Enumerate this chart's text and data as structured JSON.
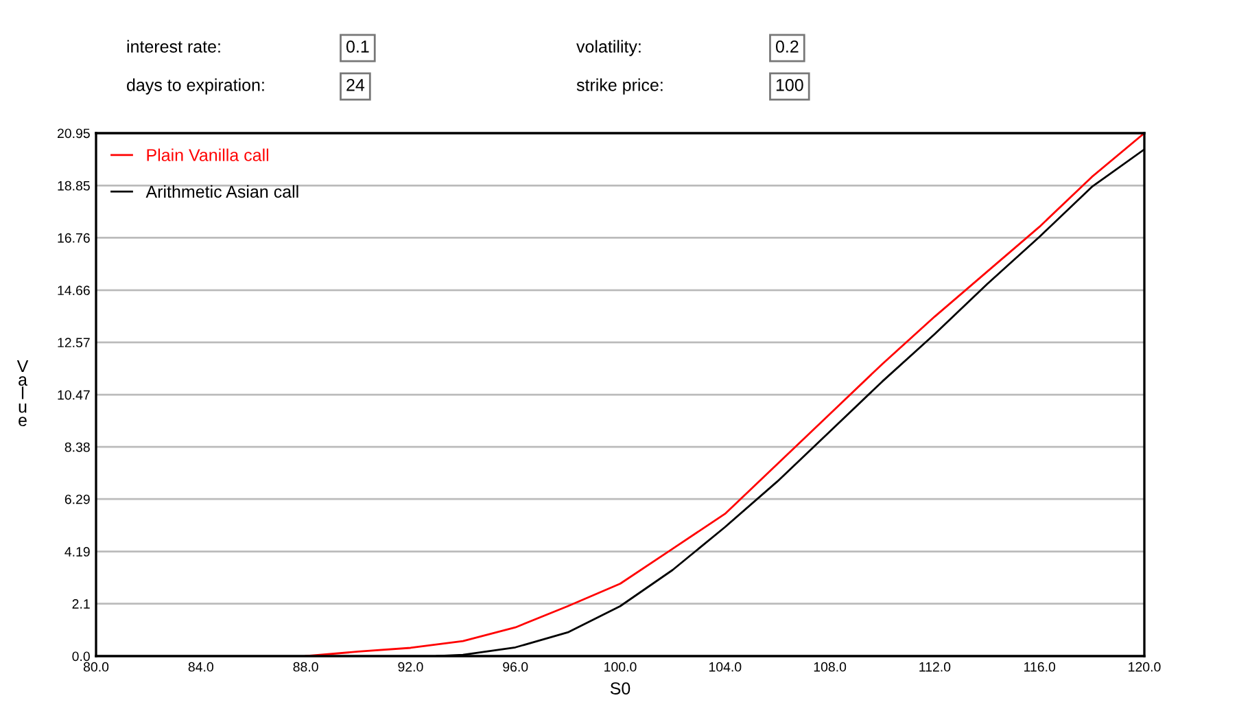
{
  "chart_data": {
    "type": "line",
    "xlabel": "S0",
    "ylabel": "Value",
    "x": [
      88,
      90,
      92,
      94,
      96,
      98,
      100,
      102,
      104,
      106,
      108,
      110,
      112,
      114,
      116,
      118,
      120
    ],
    "series": [
      {
        "name": "Plain Vanilla call",
        "color": "#ff0000",
        "values": [
          0.0,
          0.18,
          0.33,
          0.6,
          1.15,
          2.0,
          2.9,
          4.3,
          5.7,
          7.7,
          9.7,
          11.7,
          13.6,
          15.4,
          17.2,
          19.2,
          20.95
        ]
      },
      {
        "name": "Arithmetic Asian call",
        "color": "#000000",
        "x": [
          93,
          94,
          96,
          98,
          100,
          102,
          104,
          106,
          108,
          110,
          112,
          114,
          116,
          118,
          120
        ],
        "values": [
          0.0,
          0.05,
          0.35,
          0.95,
          2.0,
          3.45,
          5.17,
          7.0,
          9.0,
          11.0,
          12.9,
          14.9,
          16.8,
          18.8,
          20.3
        ]
      }
    ],
    "xlim": [
      80,
      120
    ],
    "xticks": [
      {
        "value": 80,
        "label": "80.0"
      },
      {
        "value": 84,
        "label": "84.0"
      },
      {
        "value": 88,
        "label": "88.0"
      },
      {
        "value": 92,
        "label": "92.0"
      },
      {
        "value": 96,
        "label": "96.0"
      },
      {
        "value": 100,
        "label": "100.0"
      },
      {
        "value": 104,
        "label": "104.0"
      },
      {
        "value": 108,
        "label": "108.0"
      },
      {
        "value": 112,
        "label": "112.0"
      },
      {
        "value": 116,
        "label": "116.0"
      },
      {
        "value": 120,
        "label": "120.0"
      }
    ],
    "ylim": [
      0,
      20.95
    ],
    "yticks": [
      {
        "value": 0,
        "label": "0.0"
      },
      2.1,
      4.19,
      6.29,
      8.38,
      10.47,
      12.57,
      14.66,
      16.76,
      18.85,
      20.95
    ],
    "grid": "y",
    "legend": "top left",
    "marker": "none",
    "line_style": "solid",
    "annotations": [
      "interest rate:",
      "0.1",
      "days to expiration:",
      "24",
      "volatility:",
      "0.2",
      "strike price:",
      "100"
    ]
  }
}
